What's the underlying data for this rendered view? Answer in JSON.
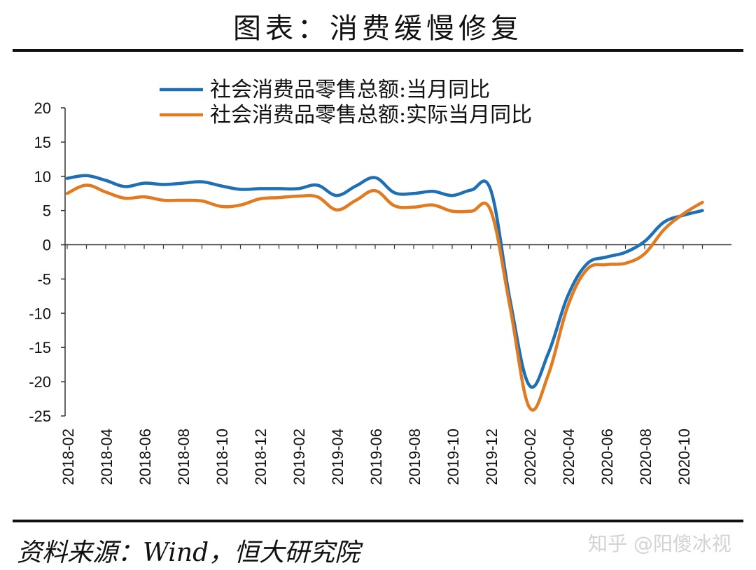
{
  "page": {
    "title": "图表：消费缓慢修复",
    "source": "资料来源：Wind，恒大研究院",
    "watermark": "知乎 @阳傻冰视"
  },
  "chart_data": {
    "type": "line",
    "x": [
      "2018-02",
      "2018-03",
      "2018-04",
      "2018-05",
      "2018-06",
      "2018-07",
      "2018-08",
      "2018-09",
      "2018-10",
      "2018-11",
      "2018-12",
      "2019-01",
      "2019-02",
      "2019-03",
      "2019-04",
      "2019-05",
      "2019-06",
      "2019-07",
      "2019-08",
      "2019-09",
      "2019-10",
      "2019-11",
      "2019-12",
      "2020-01",
      "2020-02",
      "2020-03",
      "2020-04",
      "2020-05",
      "2020-06",
      "2020-07",
      "2020-08",
      "2020-09",
      "2020-10",
      "2020-11"
    ],
    "x_tick_labels": [
      "2018-02",
      "2018-04",
      "2018-06",
      "2018-08",
      "2018-10",
      "2018-12",
      "2019-02",
      "2019-04",
      "2019-06",
      "2019-08",
      "2019-10",
      "2019-12",
      "2020-02",
      "2020-04",
      "2020-06",
      "2020-08",
      "2020-10"
    ],
    "ylim": [
      -25,
      20
    ],
    "y_ticks": [
      20,
      15,
      10,
      5,
      0,
      -5,
      -10,
      -15,
      -20,
      -25
    ],
    "legend_position": "top",
    "series": [
      {
        "name": "社会消费品零售总额:当月同比",
        "color": "#1f6fb4",
        "values": [
          9.7,
          10.1,
          9.4,
          8.5,
          9.0,
          8.8,
          9.0,
          9.2,
          8.6,
          8.1,
          8.2,
          8.2,
          8.2,
          8.7,
          7.2,
          8.6,
          9.8,
          7.6,
          7.5,
          7.8,
          7.2,
          8.0,
          8.0,
          -8.0,
          -20.5,
          -15.8,
          -7.5,
          -2.8,
          -1.8,
          -1.1,
          0.5,
          3.3,
          4.3,
          5.0
        ]
      },
      {
        "name": "社会消费品零售总额:实际当月同比",
        "color": "#e07b22",
        "values": [
          7.5,
          8.7,
          7.7,
          6.8,
          7.0,
          6.5,
          6.5,
          6.4,
          5.6,
          5.8,
          6.7,
          6.9,
          7.1,
          7.0,
          5.1,
          6.5,
          7.9,
          5.7,
          5.5,
          5.8,
          4.9,
          4.9,
          5.0,
          -9.0,
          -23.7,
          -18.9,
          -9.0,
          -3.6,
          -2.9,
          -2.7,
          -1.3,
          2.2,
          4.5,
          6.2
        ]
      }
    ]
  }
}
